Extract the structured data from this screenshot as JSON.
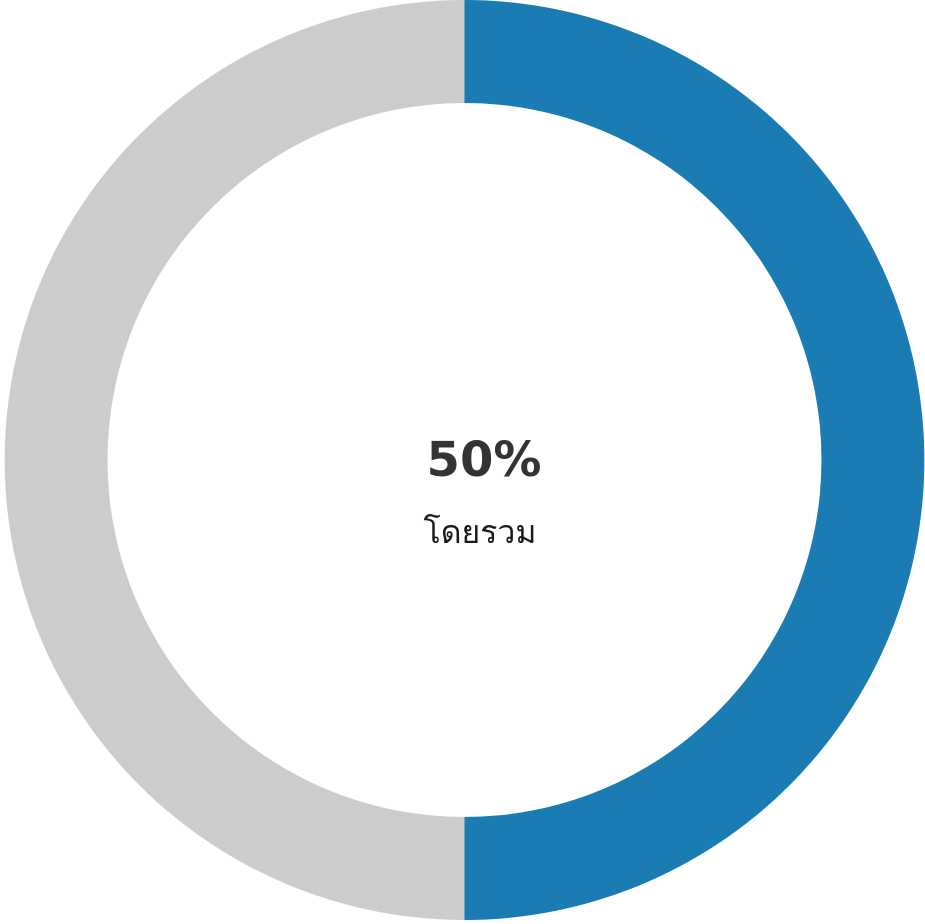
{
  "chart_data": {
    "type": "pie",
    "variant": "donut",
    "value_label": "50%",
    "caption": "โดยรวม",
    "slices": [
      {
        "value": 50,
        "color": "#1a7cb2"
      },
      {
        "value": 50,
        "color": "#cccccc"
      }
    ]
  }
}
